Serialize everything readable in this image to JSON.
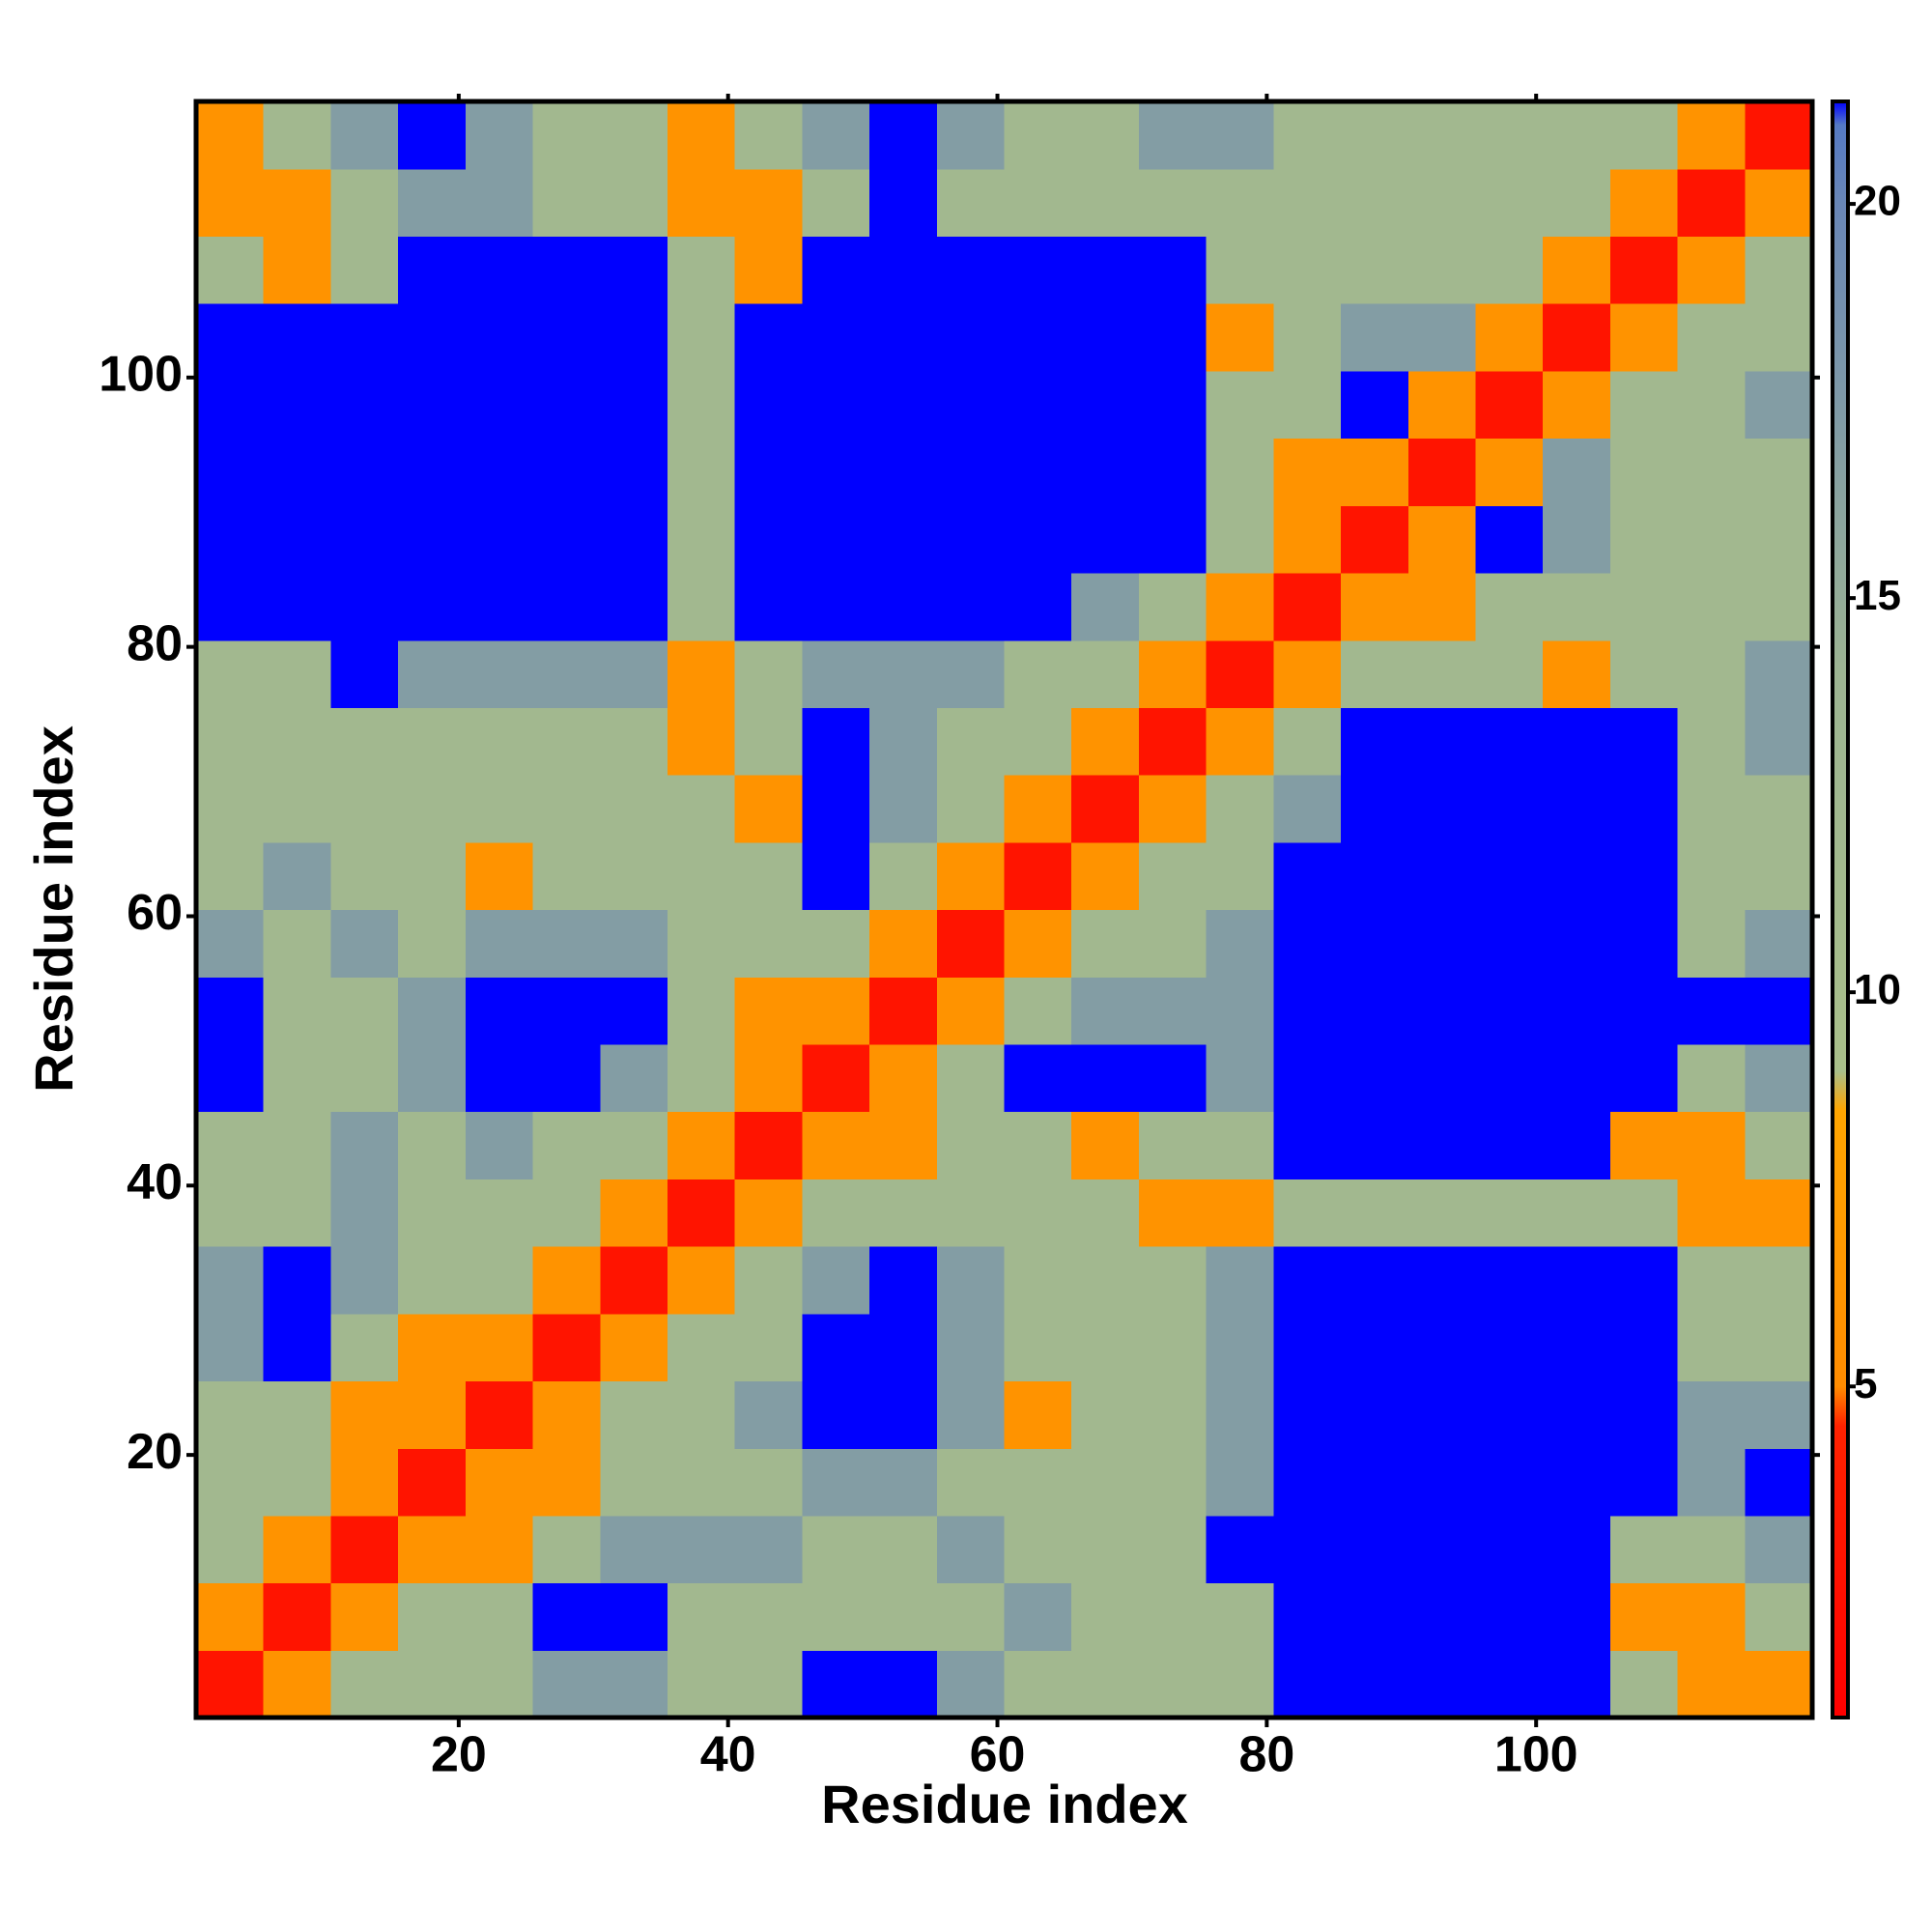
{
  "chart_data": {
    "type": "heatmap",
    "x_label": "Residue index",
    "y_label": "Residue index",
    "xbins": [
      0.5,
      5.5,
      10.5,
      15.5,
      20.5,
      25.5,
      30.5,
      35.5,
      40.5,
      45.5,
      50.5,
      55.5,
      60.5,
      65.5,
      70.5,
      75.5,
      80.5,
      85.5,
      90.5,
      95.5,
      100.5,
      105.5,
      110.5,
      115.5,
      120.5
    ],
    "ybins": [
      0.5,
      5.5,
      10.5,
      15.5,
      20.5,
      25.5,
      30.5,
      35.5,
      40.5,
      45.5,
      50.5,
      55.5,
      60.5,
      65.5,
      70.5,
      75.5,
      80.5,
      85.5,
      90.5,
      95.5,
      100.5,
      105.5,
      110.5,
      115.5,
      120.5
    ],
    "z": [
      [
        3,
        6,
        12,
        12,
        12,
        17,
        17,
        12,
        12,
        25,
        25,
        17,
        12,
        12,
        12,
        12,
        25,
        25,
        25,
        25,
        25,
        12,
        6,
        6
      ],
      [
        6,
        3,
        6,
        12,
        12,
        25,
        25,
        12,
        12,
        12,
        12,
        12,
        17,
        12,
        12,
        12,
        25,
        25,
        25,
        25,
        25,
        6,
        6,
        12
      ],
      [
        12,
        6,
        3,
        6,
        6,
        12,
        17,
        17,
        17,
        12,
        12,
        17,
        12,
        12,
        12,
        25,
        25,
        25,
        25,
        25,
        25,
        12,
        12,
        17
      ],
      [
        12,
        12,
        6,
        3,
        6,
        6,
        12,
        12,
        12,
        17,
        17,
        12,
        12,
        12,
        12,
        17,
        25,
        25,
        25,
        25,
        25,
        25,
        17,
        25
      ],
      [
        12,
        12,
        6,
        6,
        3,
        6,
        12,
        12,
        17,
        25,
        25,
        17,
        6,
        12,
        12,
        17,
        25,
        25,
        25,
        25,
        25,
        25,
        17,
        17
      ],
      [
        17,
        25,
        12,
        6,
        6,
        3,
        6,
        12,
        12,
        25,
        25,
        17,
        12,
        12,
        12,
        17,
        25,
        25,
        25,
        25,
        25,
        25,
        12,
        12
      ],
      [
        17,
        25,
        17,
        12,
        12,
        6,
        3,
        6,
        12,
        17,
        25,
        17,
        12,
        12,
        12,
        17,
        25,
        25,
        25,
        25,
        25,
        25,
        12,
        12
      ],
      [
        12,
        12,
        17,
        12,
        12,
        12,
        6,
        3,
        6,
        12,
        12,
        12,
        12,
        12,
        6,
        6,
        12,
        12,
        12,
        12,
        12,
        12,
        6,
        6
      ],
      [
        12,
        12,
        17,
        12,
        17,
        12,
        12,
        6,
        3,
        6,
        6,
        12,
        12,
        6,
        12,
        12,
        25,
        25,
        25,
        25,
        25,
        6,
        6,
        12
      ],
      [
        25,
        12,
        12,
        17,
        25,
        25,
        17,
        12,
        6,
        3,
        6,
        12,
        25,
        25,
        25,
        17,
        25,
        25,
        25,
        25,
        25,
        25,
        12,
        17
      ],
      [
        25,
        12,
        12,
        17,
        25,
        25,
        25,
        12,
        6,
        6,
        3,
        6,
        12,
        17,
        17,
        17,
        25,
        25,
        25,
        25,
        25,
        25,
        25,
        25
      ],
      [
        17,
        12,
        17,
        12,
        17,
        17,
        17,
        12,
        12,
        12,
        6,
        3,
        6,
        12,
        12,
        17,
        25,
        25,
        25,
        25,
        25,
        25,
        12,
        17
      ],
      [
        12,
        17,
        12,
        12,
        6,
        12,
        12,
        12,
        12,
        25,
        12,
        6,
        3,
        6,
        12,
        12,
        25,
        25,
        25,
        25,
        25,
        25,
        12,
        12
      ],
      [
        12,
        12,
        12,
        12,
        12,
        12,
        12,
        12,
        6,
        25,
        17,
        12,
        6,
        3,
        6,
        12,
        17,
        25,
        25,
        25,
        25,
        25,
        12,
        12
      ],
      [
        12,
        12,
        12,
        12,
        12,
        12,
        12,
        6,
        12,
        25,
        17,
        12,
        12,
        6,
        3,
        6,
        12,
        25,
        25,
        25,
        25,
        25,
        12,
        17
      ],
      [
        12,
        12,
        25,
        17,
        17,
        17,
        17,
        6,
        12,
        17,
        17,
        17,
        12,
        12,
        6,
        3,
        6,
        12,
        12,
        12,
        6,
        12,
        12,
        17
      ],
      [
        25,
        25,
        25,
        25,
        25,
        25,
        25,
        12,
        25,
        25,
        25,
        25,
        25,
        17,
        12,
        6,
        3,
        6,
        6,
        12,
        12,
        12,
        12,
        12
      ],
      [
        25,
        25,
        25,
        25,
        25,
        25,
        25,
        12,
        25,
        25,
        25,
        25,
        25,
        25,
        25,
        12,
        6,
        3,
        6,
        25,
        17,
        12,
        12,
        12
      ],
      [
        25,
        25,
        25,
        25,
        25,
        25,
        25,
        12,
        25,
        25,
        25,
        25,
        25,
        25,
        25,
        12,
        6,
        6,
        3,
        6,
        17,
        12,
        12,
        12
      ],
      [
        25,
        25,
        25,
        25,
        25,
        25,
        25,
        12,
        25,
        25,
        25,
        25,
        25,
        25,
        25,
        12,
        12,
        25,
        6,
        3,
        6,
        12,
        12,
        17
      ],
      [
        25,
        25,
        25,
        25,
        25,
        25,
        25,
        12,
        25,
        25,
        25,
        25,
        25,
        25,
        25,
        6,
        12,
        17,
        17,
        6,
        3,
        6,
        12,
        12
      ],
      [
        12,
        6,
        12,
        25,
        25,
        25,
        25,
        12,
        6,
        25,
        25,
        25,
        25,
        25,
        25,
        12,
        12,
        12,
        12,
        12,
        6,
        3,
        6,
        12
      ],
      [
        6,
        6,
        12,
        17,
        17,
        12,
        12,
        6,
        6,
        12,
        25,
        12,
        12,
        12,
        12,
        12,
        12,
        12,
        12,
        12,
        12,
        6,
        3,
        6
      ],
      [
        6,
        12,
        17,
        25,
        17,
        12,
        12,
        6,
        12,
        17,
        25,
        17,
        12,
        12,
        17,
        17,
        12,
        12,
        12,
        12,
        12,
        12,
        6,
        3
      ]
    ],
    "xlim": [
      0.5,
      120.5
    ],
    "ylim": [
      0.5,
      120.5
    ],
    "xticks": [
      20,
      40,
      60,
      80,
      100
    ],
    "yticks": [
      20,
      40,
      60,
      80,
      100
    ],
    "colorbar": {
      "zlim": [
        0.8,
        21.3
      ],
      "zticks": [
        5,
        10,
        15,
        20
      ],
      "stops": [
        {
          "value": 0.8,
          "color": "#ff0000"
        },
        {
          "value": 4.5,
          "color": "#ff2200"
        },
        {
          "value": 5,
          "color": "#ff8c00"
        },
        {
          "value": 8.5,
          "color": "#ffa500"
        },
        {
          "value": 9,
          "color": "#a9bf8a"
        },
        {
          "value": 14,
          "color": "#9db492"
        },
        {
          "value": 20,
          "color": "#6986b6"
        },
        {
          "value": 21,
          "color": "#557ac4"
        },
        {
          "value": 21.3,
          "color": "#0000ff"
        }
      ],
      "over_color": "#0000ff"
    }
  }
}
